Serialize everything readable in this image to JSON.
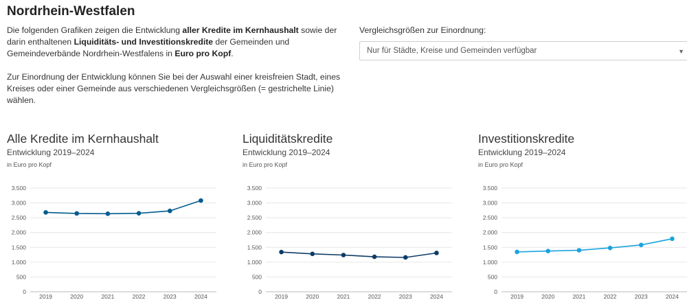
{
  "page": {
    "title": "Nordrhein-Westfalen",
    "intro_p1": [
      {
        "t": "Die folgenden Grafiken zeigen die Entwicklung ",
        "b": false
      },
      {
        "t": "aller Kredite im Kernhaushalt",
        "b": true
      },
      {
        "t": " sowie der darin enthaltenen ",
        "b": false
      },
      {
        "t": "Liquiditäts- und Investitionskredite",
        "b": true
      },
      {
        "t": " der Gemeinden und Gemeindeverbände Nordrhein-Westfalens in ",
        "b": false
      },
      {
        "t": "Euro pro Kopf",
        "b": true
      },
      {
        "t": ".",
        "b": false
      }
    ],
    "intro_p2": "Zur Einordnung der Entwicklung können Sie bei der Auswahl einer kreisfreien Stadt, eines Kreises oder einer Gemeinde aus verschiedenen Vergleichsgrößen (= gestrichelte Linie) wählen."
  },
  "comparison": {
    "label": "Vergleichsgrößen zur Einordnung:",
    "select_value": "Nur für Städte, Kreise und Gemeinden verfügbar",
    "caret_icon": "chevron-down-icon"
  },
  "chart_data": [
    {
      "type": "line",
      "title": "Alle Kredite im Kernhaushalt",
      "subtitle": "Entwicklung 2019–2024",
      "ylabel": "in Euro pro Kopf",
      "categories": [
        "2019",
        "2020",
        "2021",
        "2022",
        "2023",
        "2024"
      ],
      "series": [
        {
          "values": [
            2680,
            2645,
            2635,
            2650,
            2730,
            3080
          ],
          "color": "#005b8f"
        }
      ],
      "ylim": [
        0,
        3500
      ],
      "yticks": [
        0,
        500,
        1000,
        1500,
        2000,
        2500,
        3000,
        3500
      ],
      "ytick_labels": [
        "0",
        "500",
        "1.000",
        "1.500",
        "2.000",
        "2.500",
        "3.000",
        "3.500"
      ],
      "grid": true
    },
    {
      "type": "line",
      "title": "Liquiditätskredite",
      "subtitle": "Entwicklung 2019–2024",
      "ylabel": "in Euro pro Kopf",
      "categories": [
        "2019",
        "2020",
        "2021",
        "2022",
        "2023",
        "2024"
      ],
      "series": [
        {
          "values": [
            1340,
            1280,
            1240,
            1180,
            1160,
            1310
          ],
          "color": "#0d3c66"
        }
      ],
      "ylim": [
        0,
        3500
      ],
      "yticks": [
        0,
        500,
        1000,
        1500,
        2000,
        2500,
        3000,
        3500
      ],
      "ytick_labels": [
        "0",
        "500",
        "1.000",
        "1.500",
        "2.000",
        "2.500",
        "3.000",
        "3.500"
      ],
      "grid": true
    },
    {
      "type": "line",
      "title": "Investitionskredite",
      "subtitle": "Entwicklung 2019–2024",
      "ylabel": "in Euro pro Kopf",
      "categories": [
        "2019",
        "2020",
        "2021",
        "2022",
        "2023",
        "2024"
      ],
      "series": [
        {
          "values": [
            1345,
            1375,
            1400,
            1480,
            1580,
            1790
          ],
          "color": "#1aa3dd"
        }
      ],
      "ylim": [
        0,
        3500
      ],
      "yticks": [
        0,
        500,
        1000,
        1500,
        2000,
        2500,
        3000,
        3500
      ],
      "ytick_labels": [
        "0",
        "500",
        "1.000",
        "1.500",
        "2.000",
        "2.500",
        "3.000",
        "3.500"
      ],
      "grid": true
    }
  ]
}
